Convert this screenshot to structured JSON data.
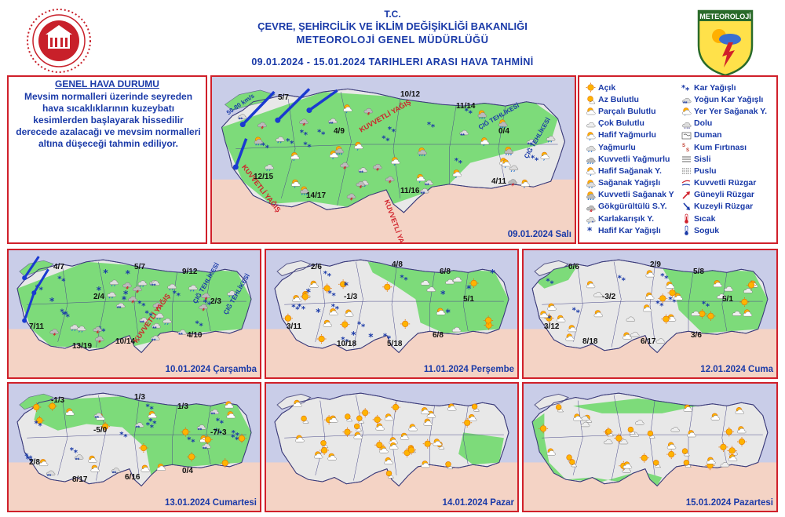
{
  "header": {
    "line1": "T.C.",
    "line2": "ÇEVRE, ŞEHİRCİLİK VE İKLİM DEĞİŞİKLİĞİ BAKANLIĞI",
    "line3": "METEOROLOJİ  GENEL  MÜDÜRLÜĞÜ",
    "line4": "09.01.2024  -  15.01.2024   TARIHLERI ARASI HAVA TAHMİNİ",
    "logo_right_text": "METEOROLOJİ"
  },
  "genel": {
    "title": "GENEL HAVA DURUMU",
    "text": "Mevsim normalleri üzerinde seyreden hava sıcaklıklarının kuzeybatı kesimlerden başlayarak hissedilir derecede azalacağı ve mevsim normalleri altına düşeceği tahmin ediliyor."
  },
  "legend": {
    "col1": [
      {
        "label": "Açık",
        "icon": "sun-icon"
      },
      {
        "label": "Az Bulutlu",
        "icon": "sun-small-cloud-icon"
      },
      {
        "label": "Parçalı Bulutlu",
        "icon": "sun-cloud-icon"
      },
      {
        "label": "Çok Bulutlu",
        "icon": "cloud-icon"
      },
      {
        "label": "Hafif Yağmurlu",
        "icon": "light-rain-icon"
      },
      {
        "label": "Yağmurlu",
        "icon": "rain-icon"
      },
      {
        "label": "Kuvvetli Yağmurlu",
        "icon": "heavy-rain-icon"
      },
      {
        "label": "Hafif Sağanak Y.",
        "icon": "light-shower-icon"
      },
      {
        "label": "Sağanak Yağışlı",
        "icon": "shower-icon"
      },
      {
        "label": "Kuvvetli Sağanak Y",
        "icon": "heavy-shower-icon"
      },
      {
        "label": "Gökgürültülü S.Y.",
        "icon": "thunderstorm-icon"
      },
      {
        "label": "Karlakarışık Y.",
        "icon": "sleet-icon"
      },
      {
        "label": "Hafif Kar Yağışlı",
        "icon": "light-snow-icon"
      }
    ],
    "col2": [
      {
        "label": "Kar Yağışlı",
        "icon": "snow-icon"
      },
      {
        "label": "Yoğun Kar Yağışlı",
        "icon": "heavy-snow-icon"
      },
      {
        "label": "Yer Yer Sağanak Y.",
        "icon": "scattered-shower-icon"
      },
      {
        "label": "Dolu",
        "icon": "hail-icon"
      },
      {
        "label": "Duman",
        "icon": "smoke-icon"
      },
      {
        "label": "Kum Fırtınası",
        "icon": "sandstorm-icon"
      },
      {
        "label": "Sisli",
        "icon": "fog-icon"
      },
      {
        "label": "Puslu",
        "icon": "haze-icon"
      },
      {
        "label": "Kuvvetli Rüzgar",
        "icon": "strong-wind-icon"
      },
      {
        "label": "Güneyli Rüzgar",
        "icon": "south-wind-icon"
      },
      {
        "label": "Kuzeyli Rüzgar",
        "icon": "north-wind-icon"
      },
      {
        "label": "Sıcak",
        "icon": "hot-icon"
      },
      {
        "label": "Soguk",
        "icon": "cold-icon"
      }
    ]
  },
  "maps": [
    {
      "date": "09.01.2024 Salı",
      "temps": [
        "5/7",
        "10/12",
        "11/14",
        "4/9",
        "0/4",
        "12/15",
        "4/11",
        "14/17",
        "11/16"
      ],
      "warnings": [
        "KUVVETLİ YAĞIŞ",
        "KUVVETLİ YAĞIŞ",
        "KUVVETLİ YAĞIŞ",
        "ÇIĞ TEHLİKESİ",
        "ÇIĞ TEHLİKESİ",
        "50-80 km/s"
      ]
    },
    {
      "date": "10.01.2024 Çarşamba",
      "temps": [
        "4/7",
        "5/7",
        "9/12",
        "2/4",
        "2/3",
        "7/11",
        "13/19",
        "10/14",
        "4/10"
      ],
      "warnings": [
        "KUVVETLİ YAĞIŞ",
        "ÇIĞ TEHLİKESİ",
        "ÇIĞ TEHLİKESİ"
      ]
    },
    {
      "date": "11.01.2024 Perşembe",
      "temps": [
        "2/6",
        "4/8",
        "6/8",
        "-1/3",
        "5/1",
        "3/11",
        "10/18",
        "5/18",
        "6/8"
      ],
      "warnings": []
    },
    {
      "date": "12.01.2024 Cuma",
      "temps": [
        "0/6",
        "2/9",
        "5/8",
        "-3/2",
        "5/1",
        "3/12",
        "8/18",
        "6/17",
        "3/6"
      ],
      "warnings": []
    },
    {
      "date": "13.01.2024 Cumartesi",
      "temps": [
        "-1/3",
        "1/3",
        "1/3",
        "-5/0",
        "-7/-3",
        "2/8",
        "8/17",
        "6/16",
        "0/4"
      ],
      "warnings": []
    },
    {
      "date": "14.01.2024 Pazar",
      "temps": [],
      "warnings": []
    },
    {
      "date": "15.01.2024 Pazartesi",
      "temps": [],
      "warnings": []
    }
  ],
  "colors": {
    "border": "#d0202a",
    "text_blue": "#1a3aa8",
    "land_green": "#7ddb7a",
    "land_gray": "#e8e8e8",
    "sea": "#c9cde8",
    "outside": "#f4d3c5"
  }
}
